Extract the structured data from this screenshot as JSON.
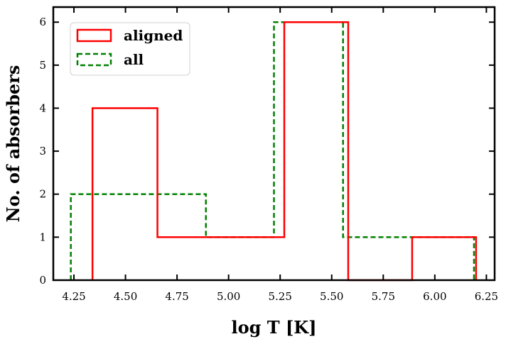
{
  "chart_data": {
    "type": "histogram",
    "title": "",
    "xlabel": "log T [K]",
    "ylabel": "No. of absorbers",
    "xlim": [
      4.15,
      6.29
    ],
    "ylim": [
      0,
      6.35
    ],
    "xticks": [
      4.25,
      4.5,
      4.75,
      5.0,
      5.25,
      5.5,
      5.75,
      6.0,
      6.25
    ],
    "xtick_labels": [
      "4.25",
      "4.50",
      "4.75",
      "5.00",
      "5.25",
      "5.50",
      "5.75",
      "6.00",
      "6.25"
    ],
    "yticks": [
      0,
      1,
      2,
      3,
      4,
      5,
      6
    ],
    "ytick_labels": [
      "0",
      "1",
      "2",
      "3",
      "4",
      "5",
      "6"
    ],
    "grid": false,
    "legend_position": "top-left",
    "series": [
      {
        "name": "aligned",
        "color": "#ff0000",
        "linestyle": "solid",
        "bin_edges": [
          4.34,
          4.655,
          4.97,
          5.27,
          5.58,
          5.89,
          6.2
        ],
        "counts": [
          4,
          1,
          1,
          6,
          0,
          1
        ]
      },
      {
        "name": "all",
        "color": "#008000",
        "linestyle": "dashed",
        "bin_edges": [
          4.235,
          4.89,
          5.22,
          5.555,
          6.19
        ],
        "counts": [
          2,
          1,
          6,
          1
        ]
      }
    ]
  }
}
